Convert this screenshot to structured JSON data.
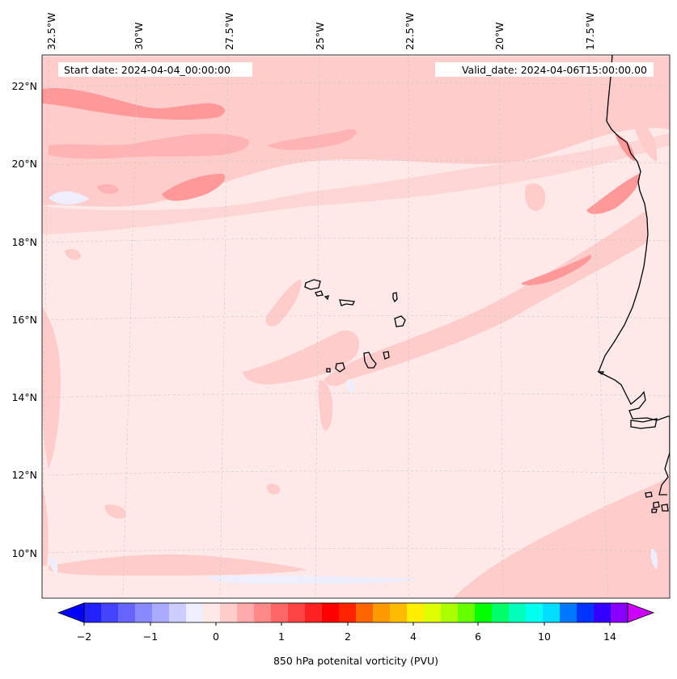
{
  "header": {
    "start_date": "Start date: 2024-04-04_00:00:00",
    "valid_date": "Valid_date: 2024-04-06T15:00:00.00"
  },
  "axes": {
    "lon_labels": [
      "32.5°W",
      "30°W",
      "27.5°W",
      "25°W",
      "22.5°W",
      "20°W",
      "17.5°W"
    ],
    "lat_labels": [
      "22°N",
      "20°N",
      "18°N",
      "16°N",
      "14°N",
      "12°N",
      "10°N"
    ]
  },
  "colorbar": {
    "label": "850 hPa potenital vorticity (PVU)",
    "ticks": [
      "−2",
      "−1",
      "0",
      "1",
      "2",
      "4",
      "6",
      "10",
      "14"
    ],
    "colors": [
      "#0000ff",
      "#2222ff",
      "#4444ff",
      "#6666ff",
      "#8888ff",
      "#aaaaff",
      "#ccccff",
      "#eeeeff",
      "#ffe8e8",
      "#ffcccc",
      "#ffaaaa",
      "#ff8888",
      "#ff6666",
      "#ff4444",
      "#ff2222",
      "#ff0000",
      "#ff2200",
      "#ff6600",
      "#ff9900",
      "#ffbb00",
      "#ffee00",
      "#ddff00",
      "#aaff00",
      "#66ff00",
      "#00ff00",
      "#00ff66",
      "#00ffbb",
      "#00ffee",
      "#00ddff",
      "#0077ff",
      "#0033ff",
      "#3300ff",
      "#8800ff",
      "#cc00ff"
    ]
  },
  "map": {
    "background_color": "#ffe8e8",
    "light_band_color": "#ffcccc",
    "medium_band_color": "#ff9999",
    "negative_color": "#eeeeff"
  }
}
